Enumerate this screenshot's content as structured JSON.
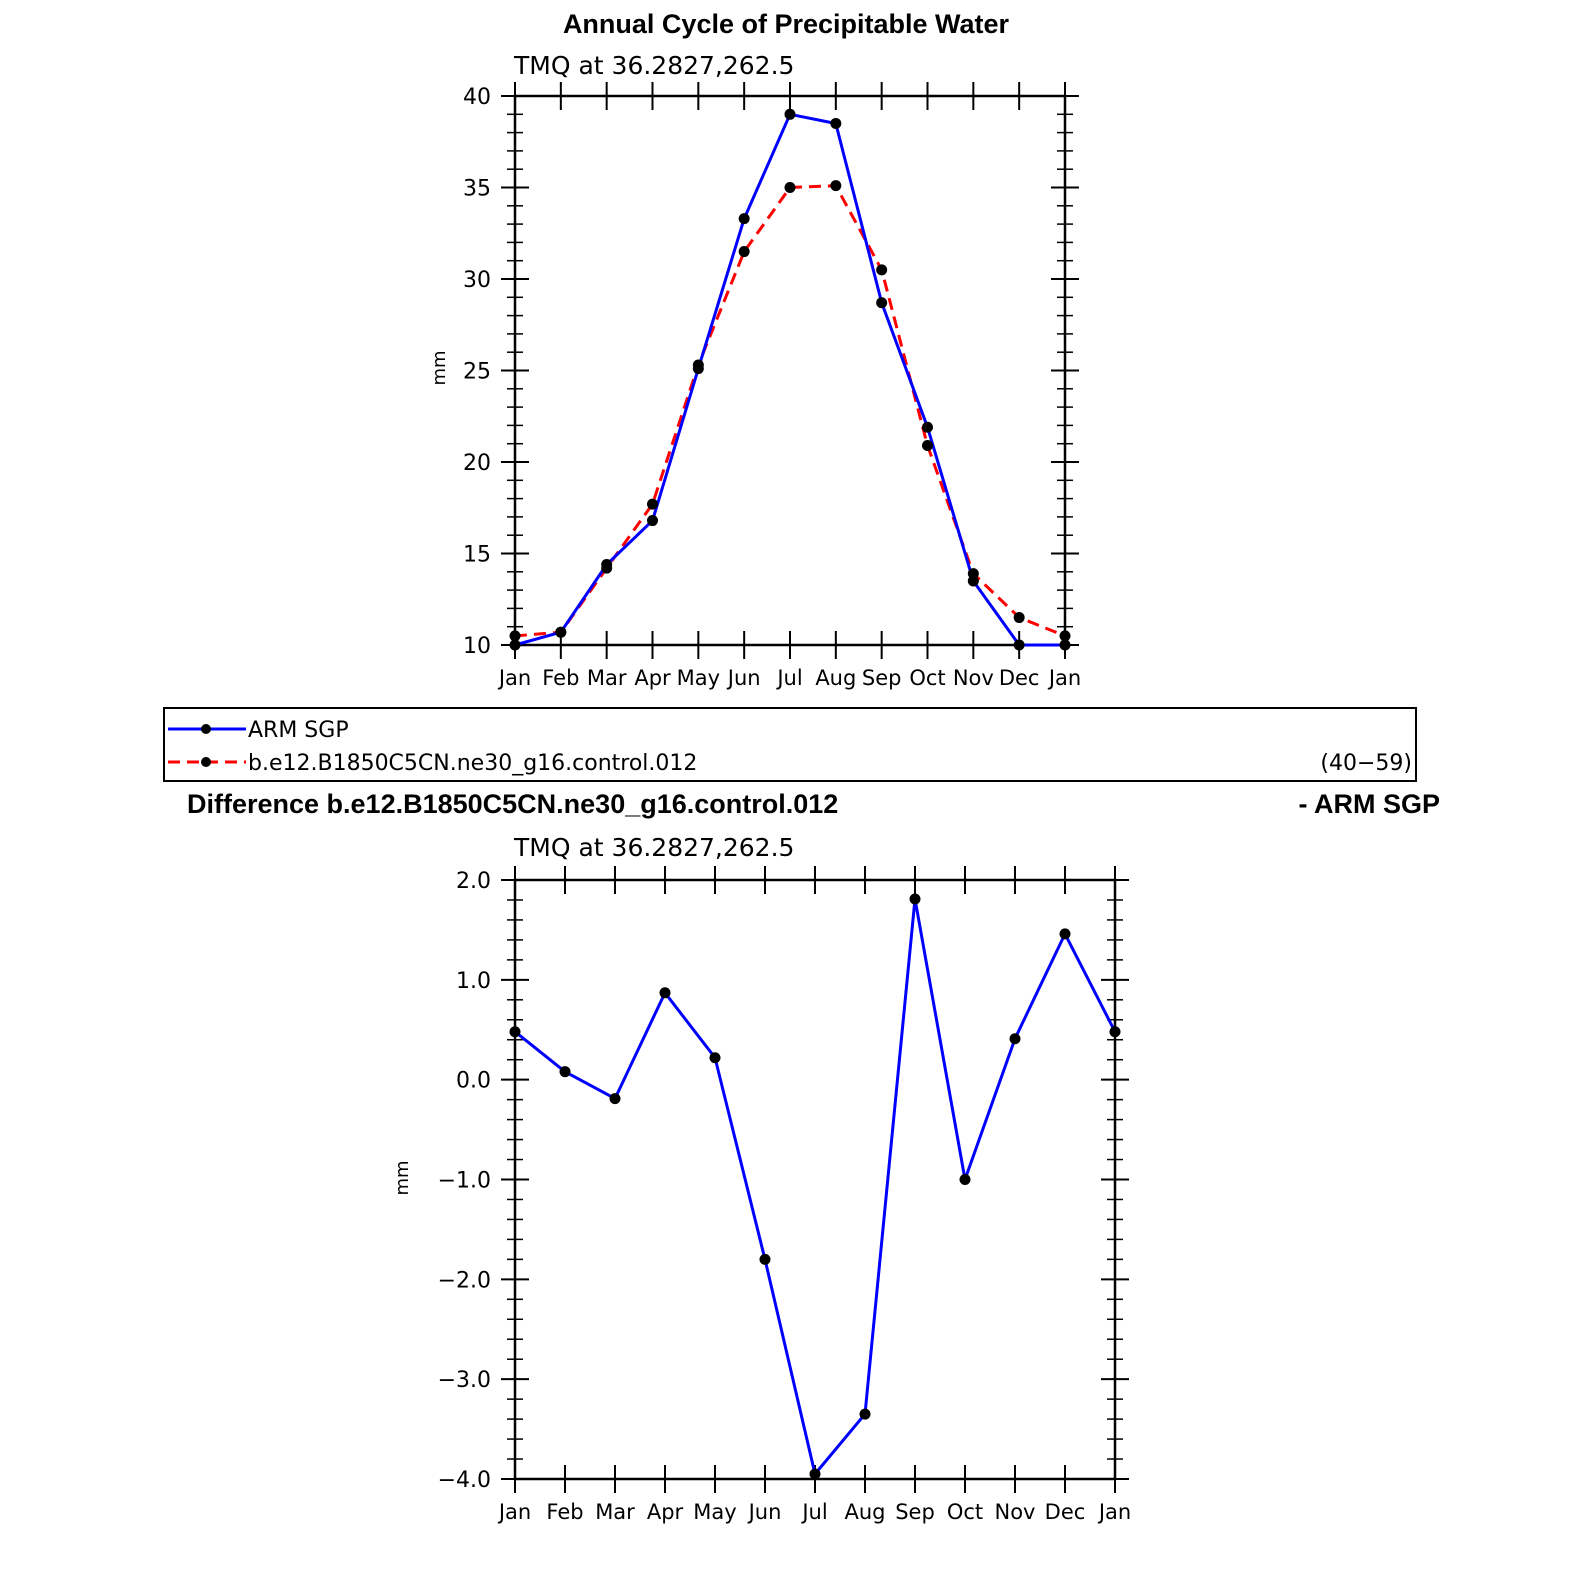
{
  "chart_data": [
    {
      "type": "line",
      "title": "Annual Cycle of Precipitable Water",
      "subtitle": "TMQ at 36.2827,262.5",
      "xlabel": "",
      "ylabel": "mm",
      "categories": [
        "Jan",
        "Feb",
        "Mar",
        "Apr",
        "May",
        "Jun",
        "Jul",
        "Aug",
        "Sep",
        "Oct",
        "Nov",
        "Dec",
        "Jan"
      ],
      "ylim": [
        10,
        40
      ],
      "yticks": [
        "10",
        "15",
        "20",
        "25",
        "30",
        "35",
        "40"
      ],
      "series": [
        {
          "name": "ARM SGP",
          "color": "#0000ff",
          "dash": "solid",
          "values": [
            10.0,
            10.7,
            14.4,
            16.8,
            25.1,
            33.3,
            39.0,
            38.5,
            28.7,
            21.9,
            13.5,
            10.0,
            10.0
          ]
        },
        {
          "name": "b.e12.B1850C5CN.ne30_g16.control.012",
          "color": "#ff0000",
          "dash": "dashed",
          "values": [
            10.5,
            10.7,
            14.2,
            17.7,
            25.3,
            31.5,
            35.0,
            35.1,
            30.5,
            20.9,
            13.9,
            11.5,
            10.5
          ]
        }
      ],
      "legend": {
        "position": "bottom",
        "entries": [
          "ARM SGP",
          "b.e12.B1850C5CN.ne30_g16.control.012"
        ],
        "years": "(40−59)"
      }
    },
    {
      "type": "line",
      "title_left": "Difference b.e12.B1850C5CN.ne30_g16.control.012",
      "title_right": "- ARM SGP",
      "subtitle": "TMQ at 36.2827,262.5",
      "xlabel": "",
      "ylabel": "mm",
      "categories": [
        "Jan",
        "Feb",
        "Mar",
        "Apr",
        "May",
        "Jun",
        "Jul",
        "Aug",
        "Sep",
        "Oct",
        "Nov",
        "Dec",
        "Jan"
      ],
      "ylim": [
        -4.0,
        2.0
      ],
      "yticks": [
        "−4.0",
        "−3.0",
        "−2.0",
        "−1.0",
        "0.0",
        "1.0",
        "2.0"
      ],
      "series": [
        {
          "color": "#0000ff",
          "dash": "solid",
          "values": [
            0.48,
            0.08,
            -0.19,
            0.87,
            0.22,
            -1.8,
            -3.95,
            -3.35,
            1.81,
            -1.0,
            0.41,
            1.46,
            0.48
          ]
        }
      ]
    }
  ]
}
